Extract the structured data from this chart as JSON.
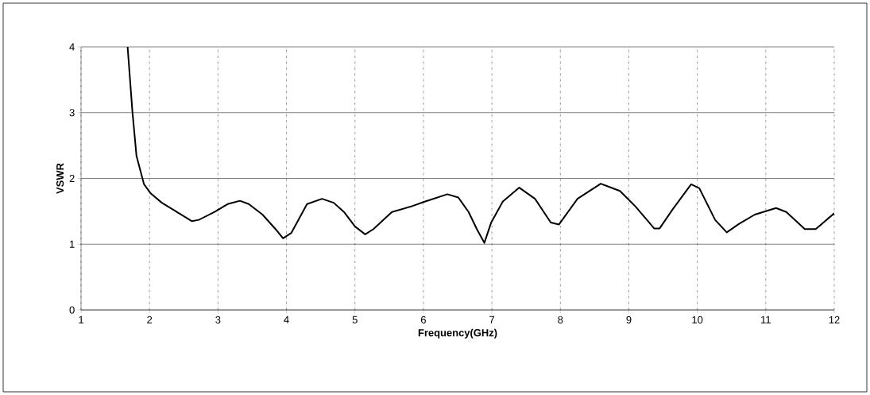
{
  "chart_data": {
    "type": "line",
    "xlabel": "Frequency(GHz)",
    "ylabel": "VSWR",
    "xlim": [
      1,
      12
    ],
    "xticks": [
      1,
      2,
      3,
      4,
      5,
      6,
      7,
      8,
      9,
      10,
      11,
      12
    ],
    "ylim": [
      0,
      4
    ],
    "yticks": [
      0,
      1,
      2,
      3,
      4
    ],
    "grid": true,
    "marker": "none",
    "line_style": "solid",
    "series": [
      {
        "color": "#000000",
        "x": [
          1.68,
          1.75,
          1.81,
          1.92,
          2.02,
          2.18,
          2.37,
          2.62,
          2.72,
          2.95,
          3.14,
          3.32,
          3.45,
          3.65,
          3.84,
          3.95,
          4.07,
          4.3,
          4.52,
          4.69,
          4.84,
          5.0,
          5.15,
          5.27,
          5.54,
          5.81,
          6.0,
          6.35,
          6.51,
          6.66,
          6.78,
          6.89,
          6.99,
          7.16,
          7.4,
          7.63,
          7.86,
          7.98,
          8.25,
          8.59,
          8.87,
          9.1,
          9.37,
          9.45,
          9.64,
          9.91,
          10.03,
          10.26,
          10.43,
          10.61,
          10.84,
          11.15,
          11.3,
          11.57,
          11.73,
          12.0
        ],
        "values": [
          4.0,
          3.02,
          2.34,
          1.91,
          1.77,
          1.63,
          1.51,
          1.35,
          1.37,
          1.49,
          1.61,
          1.66,
          1.61,
          1.45,
          1.23,
          1.09,
          1.17,
          1.61,
          1.69,
          1.63,
          1.49,
          1.27,
          1.15,
          1.23,
          1.49,
          1.57,
          1.64,
          1.76,
          1.71,
          1.49,
          1.23,
          1.02,
          1.33,
          1.65,
          1.86,
          1.69,
          1.33,
          1.3,
          1.69,
          1.92,
          1.81,
          1.57,
          1.24,
          1.24,
          1.53,
          1.91,
          1.85,
          1.37,
          1.18,
          1.31,
          1.45,
          1.55,
          1.49,
          1.23,
          1.23,
          1.47
        ]
      }
    ]
  }
}
